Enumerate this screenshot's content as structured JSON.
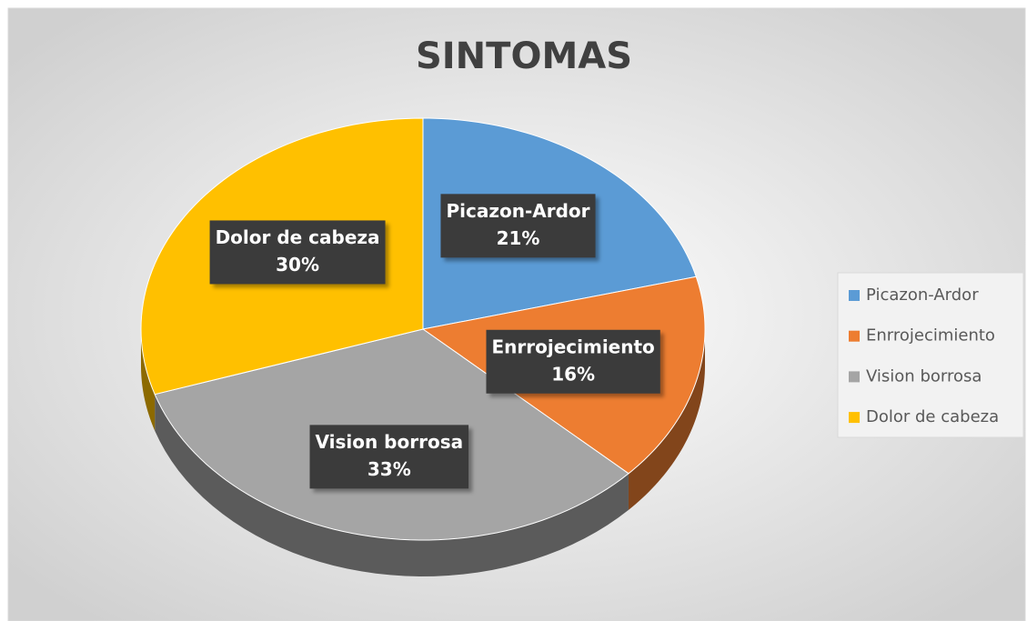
{
  "chart_data": {
    "type": "pie",
    "title": "SINTOMAS",
    "categories": [
      "Picazon-Ardor",
      "Enrrojecimiento",
      "Vision borrosa",
      "Dolor de cabeza"
    ],
    "values": [
      21,
      16,
      33,
      30
    ],
    "value_labels": [
      "21%",
      "16%",
      "33%",
      "30%"
    ],
    "colors": [
      "#5b9bd5",
      "#ed7d31",
      "#a5a5a5",
      "#ffc000"
    ],
    "legend": "right"
  }
}
